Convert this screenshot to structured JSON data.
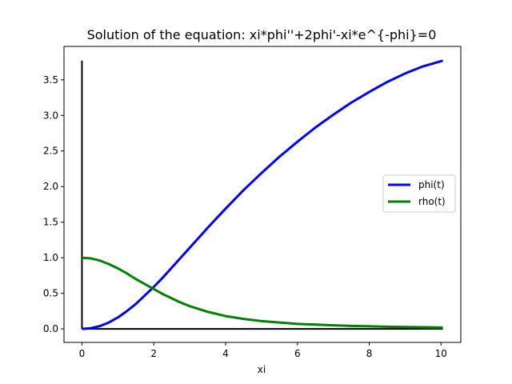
{
  "chart_data": {
    "type": "line",
    "title": "Solution of the equation: xi*phi''+2phi'-xi*e^{-phi}=0",
    "xlabel": "xi",
    "ylabel": "",
    "xlim": [
      -0.5,
      10.55
    ],
    "ylim": [
      -0.19,
      3.97
    ],
    "xticks": [
      0,
      2,
      4,
      6,
      8,
      10
    ],
    "yticks": [
      0.0,
      0.5,
      1.0,
      1.5,
      2.0,
      2.5,
      3.0,
      3.5
    ],
    "xtick_labels": [
      "0",
      "2",
      "4",
      "6",
      "8",
      "10"
    ],
    "ytick_labels": [
      "0.0",
      "0.5",
      "1.0",
      "1.5",
      "2.0",
      "2.5",
      "3.0",
      "3.5"
    ],
    "grid": false,
    "legend_position": "center-right",
    "series": [
      {
        "name": "phi(t)",
        "color": "#0000ff",
        "x": [
          0,
          0.25,
          0.5,
          0.75,
          1.0,
          1.25,
          1.5,
          1.75,
          2.0,
          2.25,
          2.5,
          2.75,
          3.0,
          3.5,
          4.0,
          4.5,
          5.0,
          5.5,
          6.0,
          6.5,
          7.0,
          7.5,
          8.0,
          8.5,
          9.0,
          9.5,
          10.05
        ],
        "y": [
          0.0,
          0.01,
          0.04,
          0.09,
          0.16,
          0.25,
          0.35,
          0.47,
          0.59,
          0.72,
          0.86,
          1.0,
          1.14,
          1.42,
          1.69,
          1.95,
          2.19,
          2.42,
          2.63,
          2.83,
          3.01,
          3.18,
          3.33,
          3.47,
          3.59,
          3.69,
          3.77
        ]
      },
      {
        "name": "rho(t)",
        "color": "#008000",
        "x": [
          0,
          0.25,
          0.5,
          0.75,
          1.0,
          1.25,
          1.5,
          1.75,
          2.0,
          2.25,
          2.5,
          2.75,
          3.0,
          3.5,
          4.0,
          4.5,
          5.0,
          5.5,
          6.0,
          6.5,
          7.0,
          7.5,
          8.0,
          8.5,
          9.0,
          9.5,
          10.05
        ],
        "y": [
          1.0,
          0.99,
          0.96,
          0.91,
          0.85,
          0.78,
          0.7,
          0.63,
          0.56,
          0.49,
          0.43,
          0.37,
          0.32,
          0.24,
          0.18,
          0.14,
          0.11,
          0.09,
          0.07,
          0.06,
          0.05,
          0.042,
          0.036,
          0.031,
          0.027,
          0.024,
          0.02
        ]
      }
    ],
    "reference_lines": [
      {
        "color": "#000000",
        "x": [
          0,
          0
        ],
        "y": [
          0,
          3.77
        ]
      },
      {
        "color": "#000000",
        "x": [
          0,
          10.05
        ],
        "y": [
          0,
          0
        ]
      }
    ]
  }
}
